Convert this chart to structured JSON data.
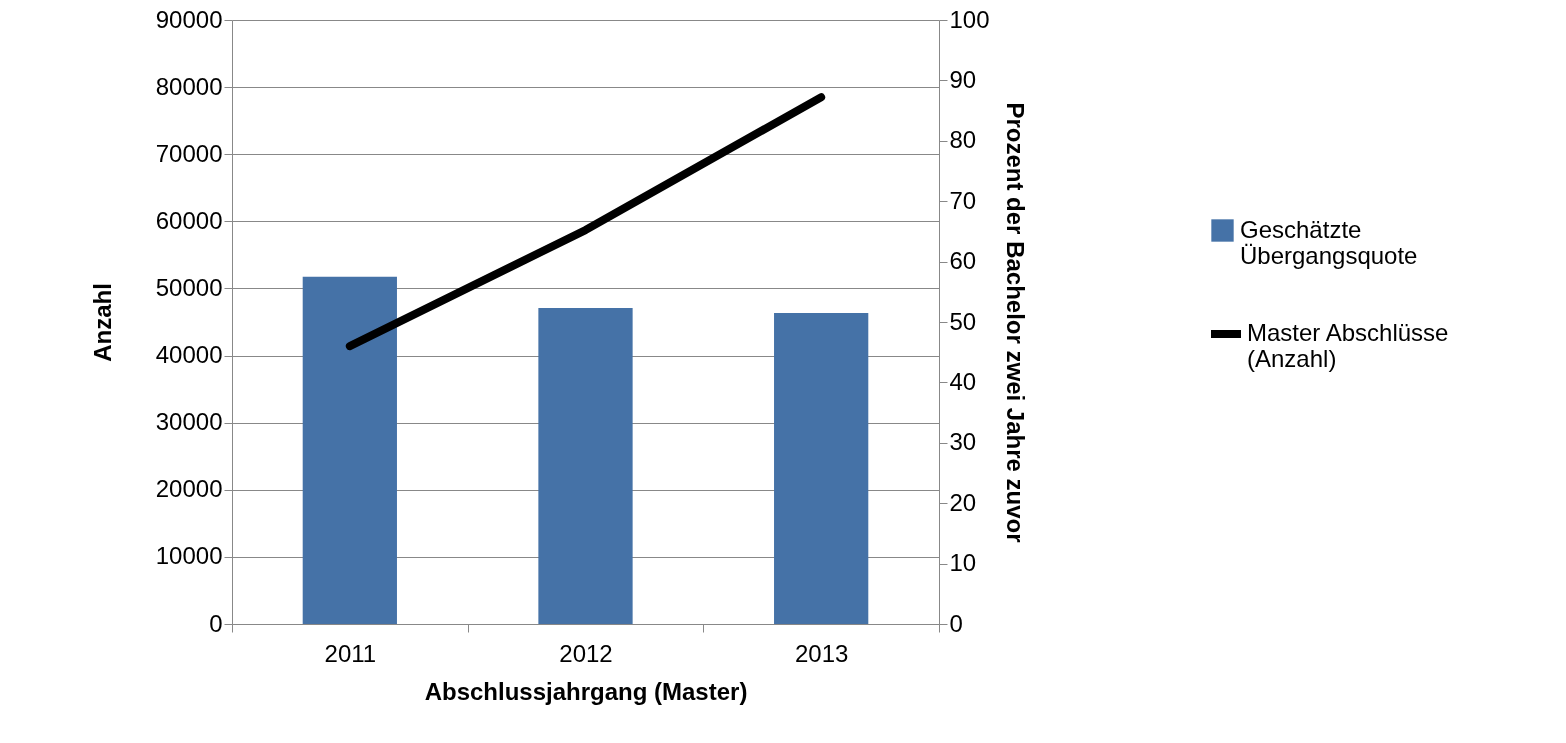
{
  "chart_data": {
    "type": "bar",
    "categories": [
      "2011",
      "2012",
      "2013"
    ],
    "xlabel": "Abschlussjahrgang (Master)",
    "ylabel": "Anzahl",
    "y2label": "Prozent der Bachelor zwei Jahre zuvor",
    "series": [
      {
        "name": "Geschätzte Übergangsquote",
        "axis": "y2",
        "color": "#4572a7",
        "values": [
          57.5,
          52.3,
          51.5
        ]
      },
      {
        "name": "Master Abschlüsse (Anzahl)",
        "type": "line",
        "axis": "y",
        "color": "#000000",
        "values": [
          41400,
          58700,
          78500
        ]
      }
    ],
    "ylim": [
      0,
      90000
    ],
    "yticks": [
      0,
      10000,
      20000,
      30000,
      40000,
      50000,
      60000,
      70000,
      80000,
      90000
    ],
    "y2lim": [
      0,
      100
    ],
    "y2ticks": [
      0,
      10,
      20,
      30,
      40,
      50,
      60,
      70,
      80,
      90,
      100
    ],
    "grid": "y",
    "legend": "right"
  }
}
